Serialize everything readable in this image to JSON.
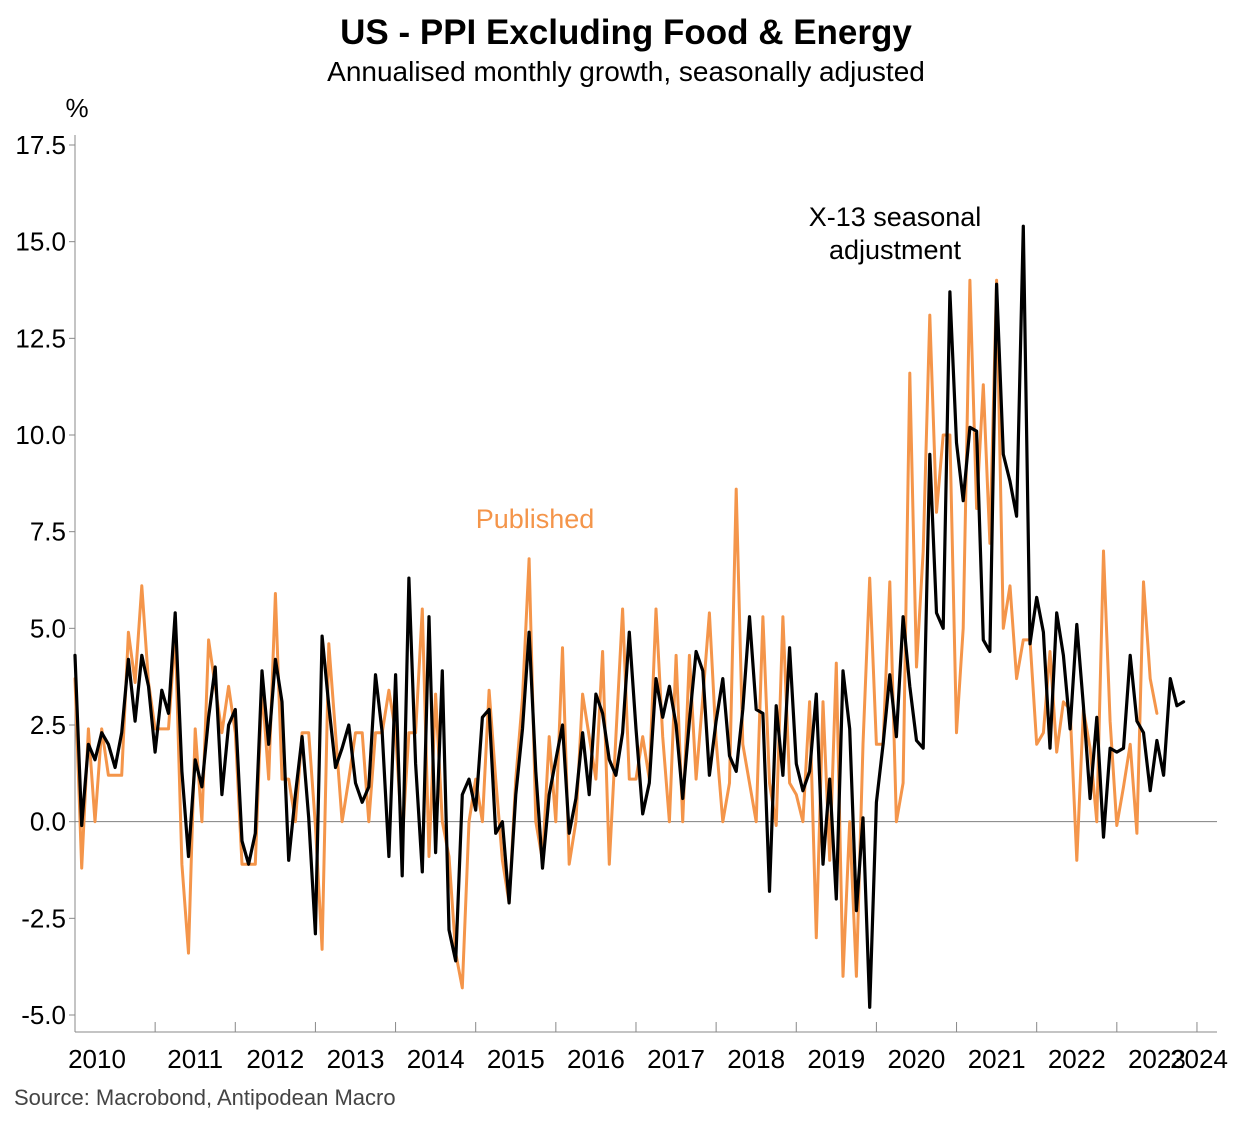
{
  "header": {
    "title": "US - PPI Excluding Food & Energy",
    "subtitle": "Annualised monthly growth, seasonally adjusted"
  },
  "footer": {
    "source": "Source: Macrobond, Antipodean Macro"
  },
  "colors": {
    "published": "#f4954a",
    "x13": "#000000",
    "axis": "#888888",
    "zero_line": "#808080"
  },
  "chart_data": {
    "type": "line",
    "title": "US - PPI Excluding Food & Energy",
    "subtitle": "Annualised monthly growth, seasonally adjusted",
    "ylabel": "%",
    "ylim": [
      -5.5,
      17.5
    ],
    "yticks": [
      -5.0,
      -2.5,
      0.0,
      2.5,
      5.0,
      7.5,
      10.0,
      12.5,
      15.0,
      17.5
    ],
    "ytick_labels": [
      "-5.0",
      "-2.5",
      "0.0",
      "2.5",
      "5.0",
      "7.5",
      "10.0",
      "12.5",
      "15.0",
      "17.5"
    ],
    "x_start": "2010-01",
    "x_end": "2024-04",
    "x_categories": [
      "2010",
      "2011",
      "2012",
      "2013",
      "2014",
      "2015",
      "2016",
      "2017",
      "2018",
      "2019",
      "2020",
      "2021",
      "2022",
      "2023",
      "2024"
    ],
    "grid": false,
    "legend": "inline annotations",
    "annotations": [
      {
        "text": "Published",
        "series": "Published"
      },
      {
        "text": "X-13 seasonal",
        "series": "X-13 seasonal adjustment"
      },
      {
        "text": "adjustment",
        "series": "X-13 seasonal adjustment"
      }
    ],
    "series": [
      {
        "name": "Published",
        "color": "#f4954a",
        "start": "2010-01",
        "values": [
          3.7,
          -1.2,
          2.4,
          0.0,
          2.4,
          1.2,
          1.2,
          1.2,
          4.9,
          3.6,
          6.1,
          3.6,
          2.4,
          2.4,
          2.4,
          4.9,
          -1.1,
          -3.4,
          2.4,
          0.0,
          4.7,
          3.5,
          2.3,
          3.5,
          2.3,
          -1.1,
          -1.1,
          -1.1,
          3.5,
          1.1,
          5.9,
          1.1,
          1.1,
          0.0,
          2.3,
          2.3,
          -0.1,
          -3.3,
          4.6,
          2.3,
          0.0,
          1.1,
          2.3,
          2.3,
          0.0,
          2.3,
          2.3,
          3.4,
          2.3,
          -0.5,
          2.3,
          2.3,
          5.5,
          -0.9,
          3.3,
          0.0,
          -0.9,
          -3.4,
          -4.3,
          0.0,
          1.1,
          0.0,
          3.4,
          1.1,
          -1.0,
          -2.1,
          1.1,
          3.2,
          6.8,
          0.0,
          -1.0,
          2.2,
          0.0,
          4.5,
          -1.1,
          0.0,
          3.3,
          2.2,
          1.1,
          4.4,
          -1.1,
          2.2,
          5.5,
          1.1,
          1.1,
          2.2,
          1.1,
          5.5,
          2.2,
          0.0,
          4.3,
          0.0,
          4.3,
          1.1,
          3.2,
          5.4,
          2.1,
          0.0,
          1.0,
          8.6,
          2.0,
          1.0,
          0.0,
          5.3,
          1.0,
          -0.1,
          5.3,
          1.0,
          0.7,
          0.0,
          3.1,
          -3.0,
          3.1,
          -1.0,
          4.1,
          -4.0,
          0.0,
          -4.0,
          2.0,
          6.3,
          2.0,
          2.0,
          6.2,
          0.0,
          1.0,
          11.6,
          4.0,
          7.0,
          13.1,
          8.0,
          10.0,
          10.0,
          2.3,
          5.0,
          14.0,
          8.1,
          11.3,
          7.2,
          14.0,
          5.0,
          6.1,
          3.7,
          4.7,
          4.7,
          2.0,
          2.3,
          4.4,
          1.8,
          3.1,
          2.9,
          -1.0,
          2.9,
          1.9,
          0.0,
          7.0,
          2.6,
          -0.1,
          0.9,
          2.0,
          -0.3,
          6.2,
          3.7,
          2.8
        ]
      },
      {
        "name": "X-13 seasonal adjustment",
        "color": "#000000",
        "start": "2010-01",
        "values": [
          4.3,
          -0.1,
          2.0,
          1.6,
          2.3,
          2.0,
          1.4,
          2.3,
          4.2,
          2.6,
          4.3,
          3.5,
          1.8,
          3.4,
          2.8,
          5.4,
          1.3,
          -0.9,
          1.6,
          0.9,
          2.7,
          4.0,
          0.7,
          2.5,
          2.9,
          -0.5,
          -1.1,
          -0.3,
          3.9,
          2.0,
          4.2,
          3.1,
          -1.0,
          0.7,
          2.2,
          0.1,
          -2.9,
          4.8,
          3.0,
          1.4,
          1.9,
          2.5,
          1.0,
          0.5,
          0.9,
          3.8,
          2.3,
          -0.9,
          3.8,
          -1.4,
          6.3,
          1.5,
          -1.3,
          5.3,
          -0.8,
          3.9,
          -2.8,
          -3.6,
          0.7,
          1.1,
          0.3,
          2.7,
          2.9,
          -0.3,
          0.0,
          -2.1,
          0.7,
          2.4,
          4.9,
          1.3,
          -1.2,
          0.7,
          1.6,
          2.5,
          -0.3,
          0.6,
          2.3,
          0.7,
          3.3,
          2.8,
          1.6,
          1.2,
          2.3,
          4.9,
          2.4,
          0.2,
          1.0,
          3.7,
          2.7,
          3.5,
          2.5,
          0.6,
          2.6,
          4.4,
          3.9,
          1.2,
          2.6,
          3.7,
          1.7,
          1.3,
          2.9,
          5.3,
          2.9,
          2.8,
          -1.8,
          3.0,
          1.2,
          4.5,
          1.5,
          0.8,
          1.3,
          3.3,
          -1.1,
          1.1,
          -2.0,
          3.9,
          2.4,
          -2.3,
          0.1,
          -4.8,
          0.5,
          2.0,
          3.8,
          2.2,
          5.3,
          3.5,
          2.1,
          1.9,
          9.5,
          5.4,
          5.0,
          13.7,
          9.8,
          8.3,
          10.2,
          10.1,
          4.7,
          4.4,
          13.9,
          9.5,
          8.8,
          7.9,
          15.4,
          4.6,
          5.8,
          4.9,
          1.9,
          5.4,
          4.3,
          2.4,
          5.1,
          3.0,
          0.6,
          2.7,
          -0.4,
          1.9,
          1.8,
          1.9,
          4.3,
          2.6,
          2.3,
          0.8,
          2.1,
          1.2,
          3.7,
          3.0,
          3.1
        ]
      }
    ]
  }
}
